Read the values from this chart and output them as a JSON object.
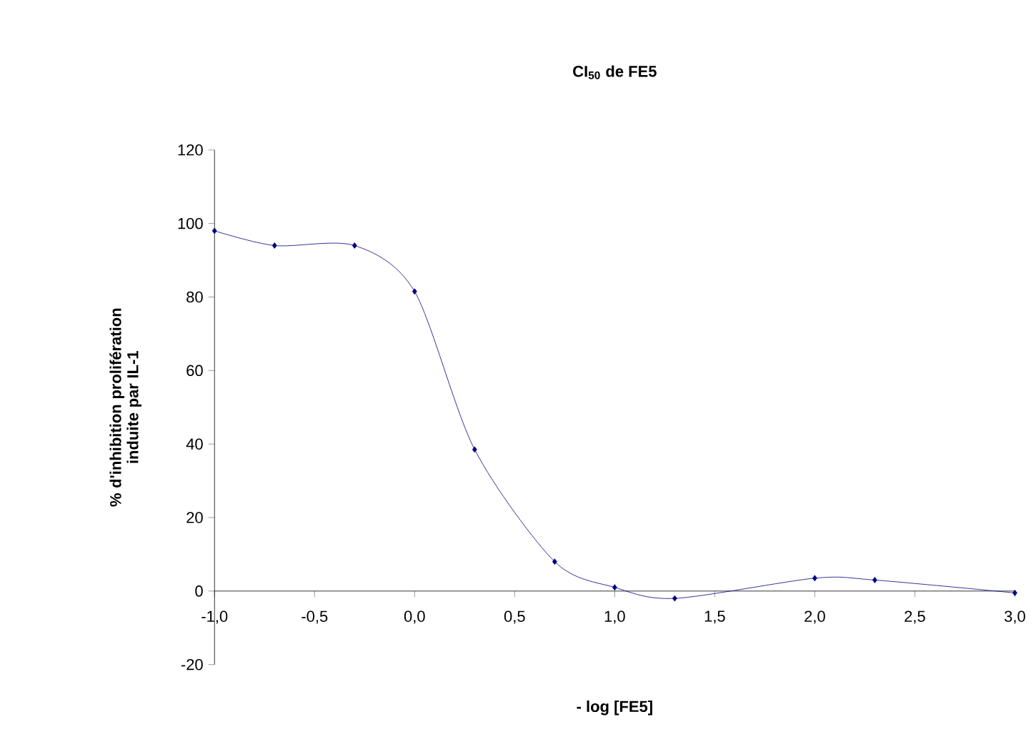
{
  "chart_data": {
    "type": "line",
    "title": "CI$_{50}$ de FE5",
    "xlabel": "- log [FE5]",
    "ylabel": "% d'inhibition prolifération induite par IL-1",
    "x": [
      -1,
      -0.7,
      -0.3,
      0,
      0.3,
      0.7,
      1,
      1.3,
      2,
      2.3,
      3
    ],
    "series": [
      {
        "color": "#000080",
        "values": [
          98,
          94,
          94,
          81.5,
          38.5,
          8,
          1,
          -2,
          3.5,
          3,
          -0.5
        ]
      }
    ],
    "xlim": [
      -1,
      3
    ],
    "ylim": [
      -20,
      120
    ],
    "xticks": [
      {
        "value": -1,
        "label": "-1,0"
      },
      {
        "value": -0.5,
        "label": "-0,5"
      },
      {
        "value": 0,
        "label": "0,0"
      },
      {
        "value": 0.5,
        "label": "0,5"
      },
      {
        "value": 1,
        "label": "1,0"
      },
      {
        "value": 1.5,
        "label": "1,5"
      },
      {
        "value": 2,
        "label": "2,0"
      },
      {
        "value": 2.5,
        "label": "2,5"
      },
      {
        "value": 3,
        "label": "3,0"
      }
    ],
    "yticks": [
      -20,
      0,
      20,
      40,
      60,
      80,
      100,
      120
    ],
    "marker": "diamond",
    "line_style": "solid",
    "grid": false
  }
}
